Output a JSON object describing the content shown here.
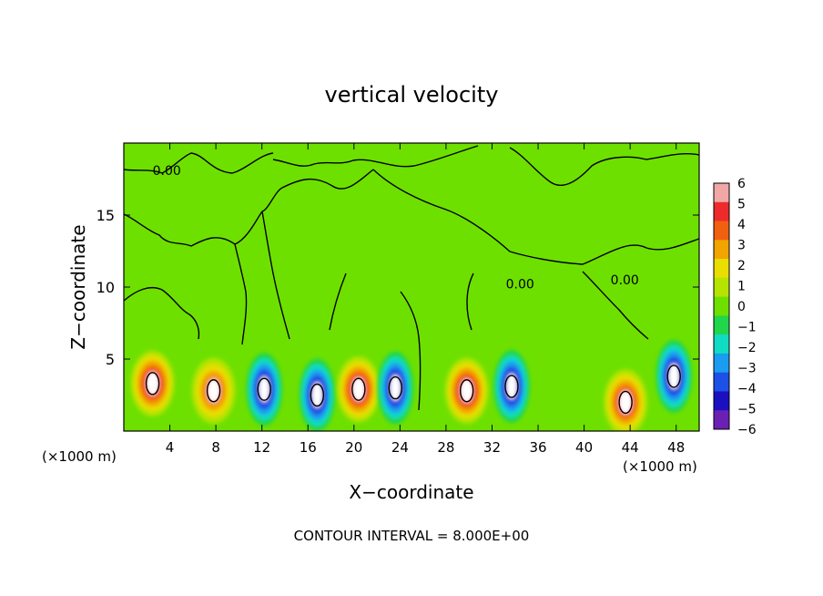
{
  "chart_data": {
    "type": "heatmap",
    "title": "vertical velocity",
    "xlabel": "X−coordinate",
    "ylabel": "Z−coordinate",
    "x_units_left": "(×1000 m)",
    "x_units_right": "(×1000 m)",
    "footer": "CONTOUR INTERVAL = 8.000E+00",
    "xlim": [
      0,
      50
    ],
    "ylim": [
      0,
      20
    ],
    "x_ticks": [
      4,
      8,
      12,
      16,
      20,
      24,
      28,
      32,
      36,
      40,
      44,
      48
    ],
    "y_ticks": [
      5,
      10,
      15
    ],
    "contour_labels": [
      {
        "text": "0.00",
        "x": 2.5,
        "y": 17.8
      },
      {
        "text": "0.00",
        "x": 33.2,
        "y": 9.9
      },
      {
        "text": "0.00",
        "x": 42.3,
        "y": 10.2
      }
    ],
    "colorbar": {
      "labels": [
        "6",
        "5",
        "4",
        "3",
        "2",
        "1",
        "0",
        "−1",
        "−2",
        "−3",
        "−4",
        "−5",
        "−6"
      ],
      "colors": [
        "#f2a7a7",
        "#ee2b2b",
        "#f06010",
        "#f2a400",
        "#e8de00",
        "#b4e400",
        "#6ee000",
        "#22d64c",
        "#10dcc4",
        "#1a9cf0",
        "#1d50e6",
        "#1a10c0",
        "#6b20b4"
      ]
    },
    "features": [
      {
        "kind": "updraft",
        "x": 2.5,
        "z": 3.3,
        "peak": 6
      },
      {
        "kind": "updraft",
        "x": 7.8,
        "z": 2.8,
        "peak": 4.5
      },
      {
        "kind": "downdraft",
        "x": 12.2,
        "z": 2.9,
        "peak": -6
      },
      {
        "kind": "downdraft",
        "x": 16.8,
        "z": 2.5,
        "peak": -6
      },
      {
        "kind": "updraft",
        "x": 20.4,
        "z": 2.9,
        "peak": 6
      },
      {
        "kind": "downdraft",
        "x": 23.6,
        "z": 3.0,
        "peak": -6
      },
      {
        "kind": "updraft",
        "x": 29.8,
        "z": 2.8,
        "peak": 6
      },
      {
        "kind": "downdraft",
        "x": 33.7,
        "z": 3.1,
        "peak": -6
      },
      {
        "kind": "updraft",
        "x": 43.6,
        "z": 2.0,
        "peak": 5.5
      },
      {
        "kind": "downdraft",
        "x": 47.8,
        "z": 3.8,
        "peak": -6
      }
    ]
  }
}
